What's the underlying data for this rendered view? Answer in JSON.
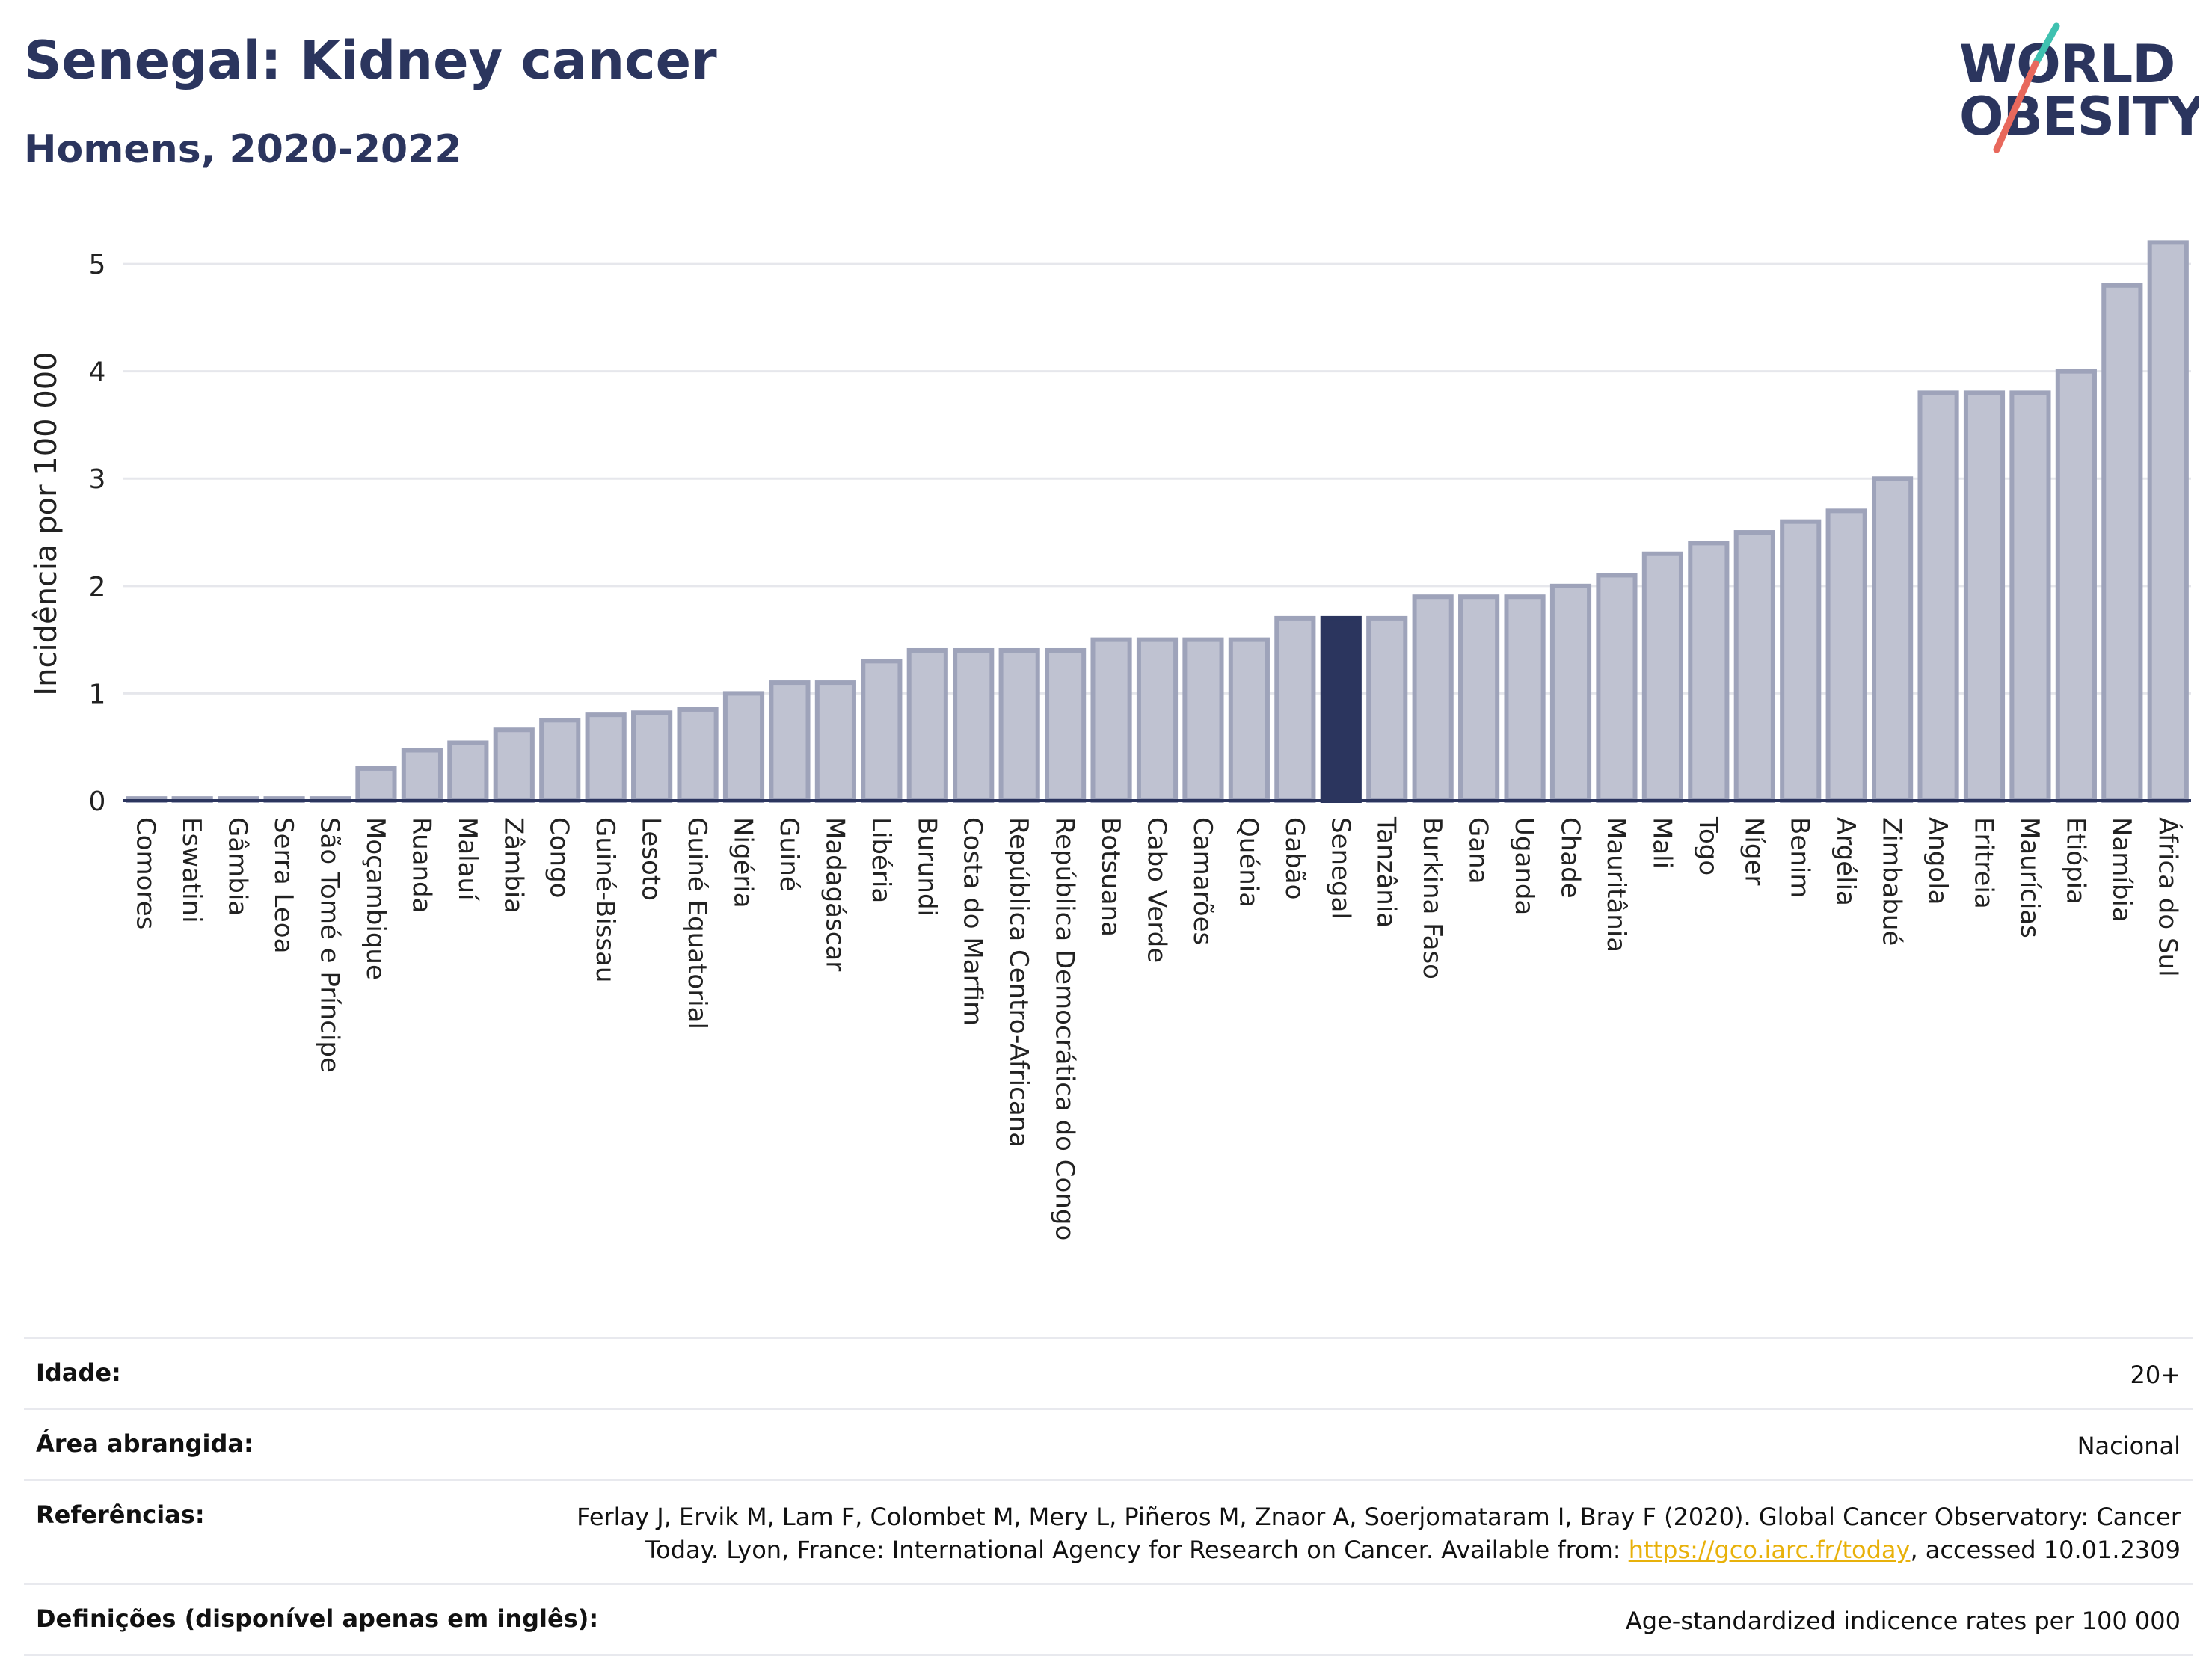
{
  "header": {
    "title": "Senegal: Kidney cancer",
    "subtitle": "Homens, 2020-2022"
  },
  "logo": {
    "line1": "WORLD",
    "line2": "OBESITY",
    "accent_colors": [
      "#3fc1b0",
      "#e8685c"
    ]
  },
  "colors": {
    "bar_fill": "#bfc2d1",
    "bar_stroke": "#9ea3ba",
    "highlight": "#2b355e",
    "grid": "#e6e7ec",
    "axis": "#2b355e"
  },
  "chart_data": {
    "type": "bar",
    "title": "Senegal: Kidney cancer",
    "subtitle": "Homens, 2020-2022",
    "ylabel": "Incidência por 100 000",
    "xlabel": "",
    "ylim": [
      0,
      5.3
    ],
    "yticks": [
      0,
      1,
      2,
      3,
      4,
      5
    ],
    "grid": true,
    "highlight": "Senegal",
    "categories": [
      "Comores",
      "Eswatini",
      "Gâmbia",
      "Serra Leoa",
      "São Tomé e Príncipe",
      "Moçambique",
      "Ruanda",
      "Malauí",
      "Zâmbia",
      "Congo",
      "Guiné-Bissau",
      "Lesoto",
      "Guiné Equatorial",
      "Nigéria",
      "Guiné",
      "Madagáscar",
      "Libéria",
      "Burundi",
      "Costa do Marfim",
      "República Centro-Africana",
      "República Democrática do Congo",
      "Botsuana",
      "Cabo Verde",
      "Camarões",
      "Quénia",
      "Gabão",
      "Senegal",
      "Tanzânia",
      "Burkina Faso",
      "Gana",
      "Uganda",
      "Chade",
      "Mauritânia",
      "Mali",
      "Togo",
      "Níger",
      "Benim",
      "Argélia",
      "Zimbabué",
      "Angola",
      "Eritreia",
      "Maurícias",
      "Etiópia",
      "Namíbia",
      "África do Sul"
    ],
    "values": [
      0.02,
      0.02,
      0.02,
      0.02,
      0.02,
      0.3,
      0.47,
      0.54,
      0.66,
      0.75,
      0.8,
      0.82,
      0.85,
      1.0,
      1.1,
      1.1,
      1.3,
      1.4,
      1.4,
      1.4,
      1.4,
      1.5,
      1.5,
      1.5,
      1.5,
      1.7,
      1.7,
      1.7,
      1.9,
      1.9,
      1.9,
      2.0,
      2.1,
      2.3,
      2.4,
      2.5,
      2.6,
      2.7,
      3.0,
      3.8,
      3.8,
      3.8,
      4.0,
      4.8,
      5.2
    ]
  },
  "footer": {
    "rows": [
      {
        "label": "Idade:",
        "value": "20+"
      },
      {
        "label": "Área abrangida:",
        "value": "Nacional"
      },
      {
        "label": "Referências:",
        "value_pre": "Ferlay J, Ervik M, Lam F, Colombet M, Mery L, Piñeros M, Znaor A, Soerjomataram I, Bray F (2020). Global Cancer Observatory: Cancer Today. Lyon, France: International Agency for Research on Cancer. Available from: ",
        "link": "https://gco.iarc.fr/today",
        "value_post": ", accessed 10.01.2309"
      },
      {
        "label": "Definições (disponível apenas em inglês):",
        "value": "Age-standardized indicence rates per 100 000"
      }
    ]
  }
}
